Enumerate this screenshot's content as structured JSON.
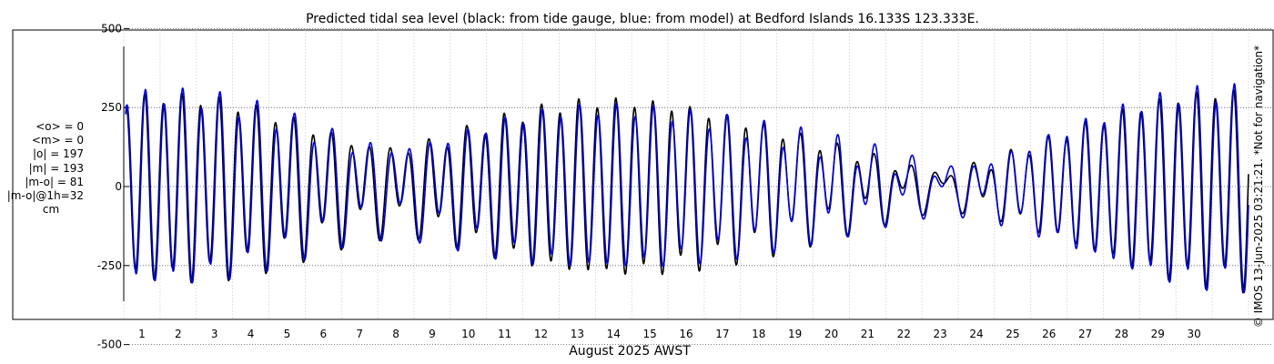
{
  "chart_data": {
    "type": "line",
    "title": "Predicted tidal sea level (black: from tide gauge, blue: from model) at Bedford Islands 16.133S 123.333E.",
    "xlabel": "August 2025 AWST",
    "ylabel": "",
    "xlim": [
      0,
      31
    ],
    "ylim": [
      -550,
      550
    ],
    "y_ticks": [
      -500,
      -250,
      0,
      250,
      500
    ],
    "y_tick_labels": [
      "-500",
      "-250",
      "0",
      "250",
      "500"
    ],
    "x_ticks": [
      1,
      2,
      3,
      4,
      5,
      6,
      7,
      8,
      9,
      10,
      11,
      12,
      13,
      14,
      15,
      16,
      17,
      18,
      19,
      20,
      21,
      22,
      23,
      24,
      25,
      26,
      27,
      28,
      29,
      30
    ],
    "x_tick_labels": [
      "1",
      "2",
      "3",
      "4",
      "5",
      "6",
      "7",
      "8",
      "9",
      "10",
      "11",
      "12",
      "13",
      "14",
      "15",
      "16",
      "17",
      "18",
      "19",
      "20",
      "21",
      "22",
      "23",
      "24",
      "25",
      "26",
      "27",
      "28",
      "29",
      "30"
    ],
    "grid": true,
    "series": [
      {
        "name": "from tide gauge",
        "color": "#000000",
        "components": [
          {
            "period_days": 0.5175,
            "amplitude": 168,
            "phase_offset_days": 0.08
          },
          {
            "period_days": 0.5,
            "amplitude": 96,
            "phase_offset_days": 0.08
          },
          {
            "period_days": 0.5274,
            "amplitude": 42,
            "phase_offset_days": -1.1
          },
          {
            "period_days": 0.9973,
            "amplitude": 36,
            "phase_offset_days": 0.55
          },
          {
            "period_days": 1.0758,
            "amplitude": 20,
            "phase_offset_days": 0.1
          }
        ],
        "x_start": 0.05,
        "x_end": 31.0
      },
      {
        "name": "from model",
        "color": "#0000dd",
        "components": [
          {
            "period_days": 0.5175,
            "amplitude": 164,
            "phase_offset_days": 0.1
          },
          {
            "period_days": 0.5,
            "amplitude": 93,
            "phase_offset_days": 0.1
          },
          {
            "period_days": 0.5274,
            "amplitude": 45,
            "phase_offset_days": -1.05
          },
          {
            "period_days": 0.9973,
            "amplitude": 40,
            "phase_offset_days": 0.62
          },
          {
            "period_days": 1.0758,
            "amplitude": 22,
            "phase_offset_days": 0.18
          }
        ],
        "x_start": 0.05,
        "x_end": 31.0
      }
    ]
  },
  "stats": {
    "mean_obs": "<o> = 0",
    "mean_model": "<m> = 0",
    "abs_obs": "|o| = 197",
    "abs_model": "|m| = 193",
    "abs_diff": "|m-o| = 81",
    "abs_diff_1h": "|m-o|@1h=32",
    "unit": "cm"
  },
  "credit": "© IMOS 13-Jun-2025 03:21:21. *Not for navigation*"
}
